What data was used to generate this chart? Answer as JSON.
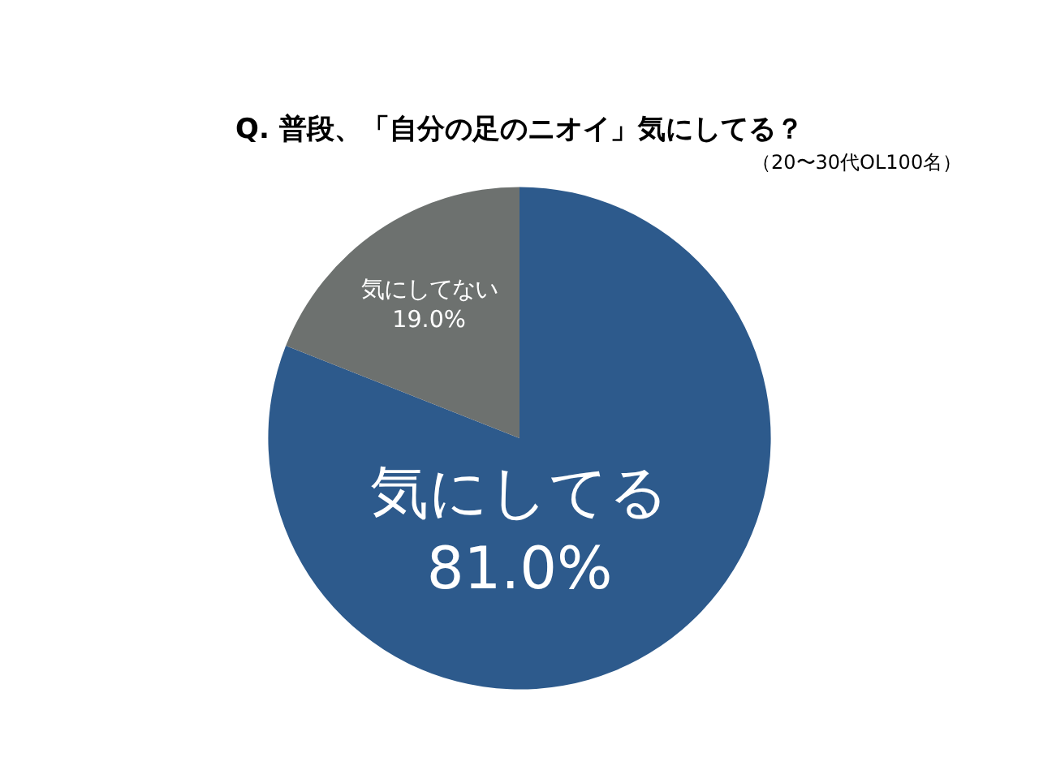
{
  "chart_data": {
    "type": "pie",
    "title": "Q. 普段、「自分の足のニオイ」気にしてる？",
    "subtitle": "（20〜30代OL100名）",
    "categories": [
      "気にしてる",
      "気にしてない"
    ],
    "values": [
      81.0,
      19.0
    ],
    "value_labels": [
      "81.0%",
      "19.0%"
    ],
    "colors": [
      "#2d5a8c",
      "#6d716f"
    ],
    "legend": false
  }
}
